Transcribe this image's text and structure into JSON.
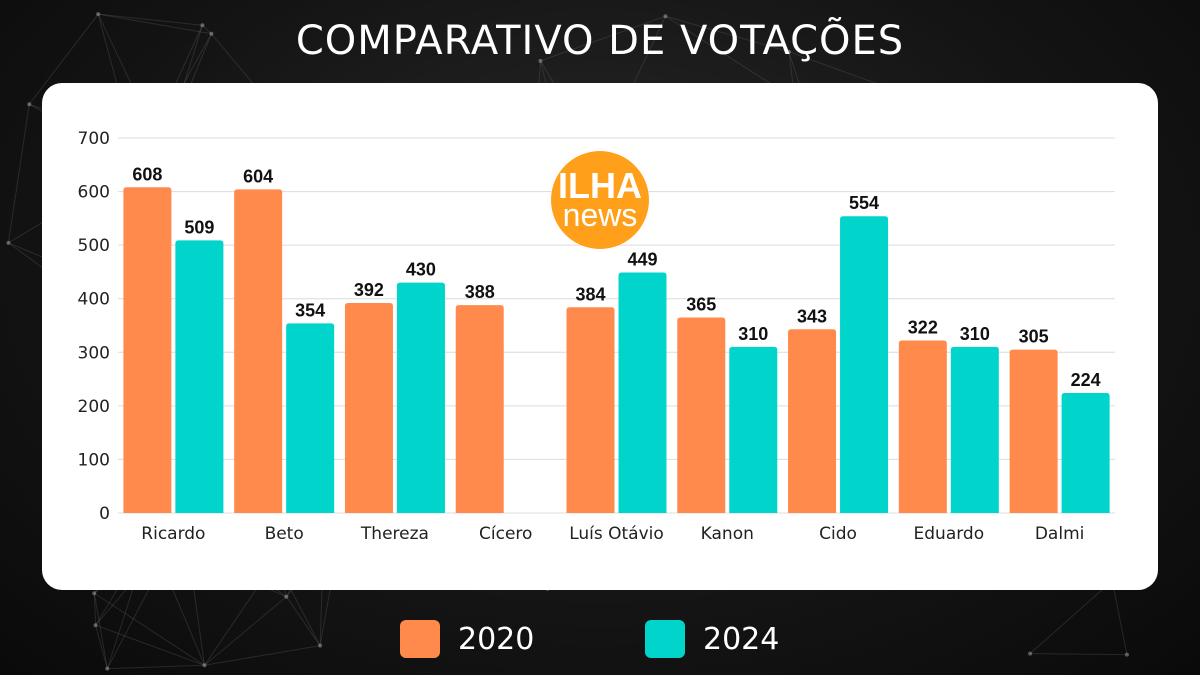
{
  "title": "COMPARATIVO DE VOTAÇÕES",
  "logo": {
    "text_top": "ILHA",
    "text_bottom": "news",
    "color": "#FF9F1A"
  },
  "chart_data": {
    "type": "bar",
    "title": "",
    "xlabel": "",
    "ylabel": "",
    "ylim": [
      0,
      700
    ],
    "yticks": [
      0,
      100,
      200,
      300,
      400,
      500,
      600,
      700
    ],
    "grid": true,
    "legend_position": "bottom",
    "categories": [
      "Ricardo",
      "Beto",
      "Thereza",
      "Cícero",
      "Luís Otávio",
      "Kanon",
      "Cido",
      "Eduardo",
      "Dalmi"
    ],
    "series": [
      {
        "name": "2020",
        "color": "#FF8A4C",
        "values": [
          608,
          604,
          392,
          388,
          384,
          365,
          343,
          322,
          305
        ]
      },
      {
        "name": "2024",
        "color": "#00D4CB",
        "values": [
          509,
          354,
          430,
          null,
          449,
          310,
          554,
          310,
          224
        ]
      }
    ]
  }
}
